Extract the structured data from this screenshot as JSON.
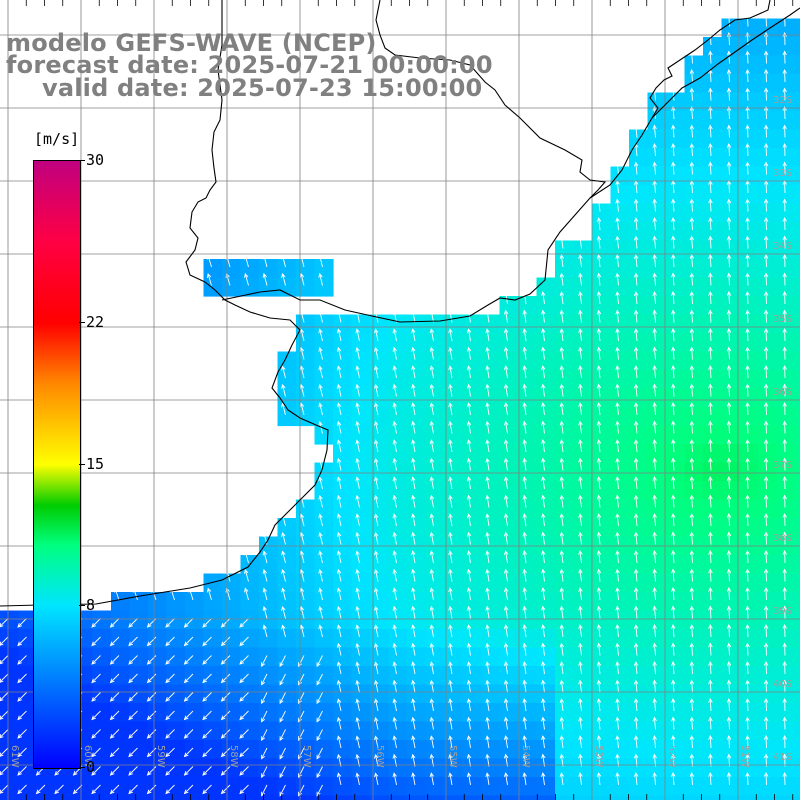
{
  "title": {
    "line1": "modelo GEFS-WAVE (NCEP)",
    "line2": "forecast date: 2025-07-21 00:00:00",
    "line3": "valid date: 2025-07-23 15:00:00"
  },
  "colorbar": {
    "unit": "[m/s]",
    "ticks": [
      "30",
      "22",
      "15",
      "8",
      "0"
    ],
    "tick_values": [
      30,
      22,
      15,
      8,
      0
    ],
    "stops": [
      {
        "v": 0,
        "color": "#0000ff"
      },
      {
        "v": 8,
        "color": "#00e5ff"
      },
      {
        "v": 11,
        "color": "#00ff80"
      },
      {
        "v": 13,
        "color": "#00cc00"
      },
      {
        "v": 15,
        "color": "#ffff00"
      },
      {
        "v": 19,
        "color": "#ff8800"
      },
      {
        "v": 22,
        "color": "#ff0000"
      },
      {
        "v": 26,
        "color": "#ff0044"
      },
      {
        "v": 30,
        "color": "#c0007f"
      }
    ]
  },
  "lat_labels": [
    "32S",
    "33S",
    "34S",
    "35S",
    "36S",
    "37S",
    "38S",
    "39S",
    "40S",
    "41S"
  ],
  "lon_labels": [
    "61W",
    "60W",
    "59W",
    "58W",
    "57W",
    "56W",
    "55W",
    "54W",
    "53W",
    "52W",
    "51W"
  ],
  "colors": {
    "grid": "#808080",
    "coast": "#000000",
    "label": "#a0a0a0",
    "arrow": "#ffffff"
  }
}
